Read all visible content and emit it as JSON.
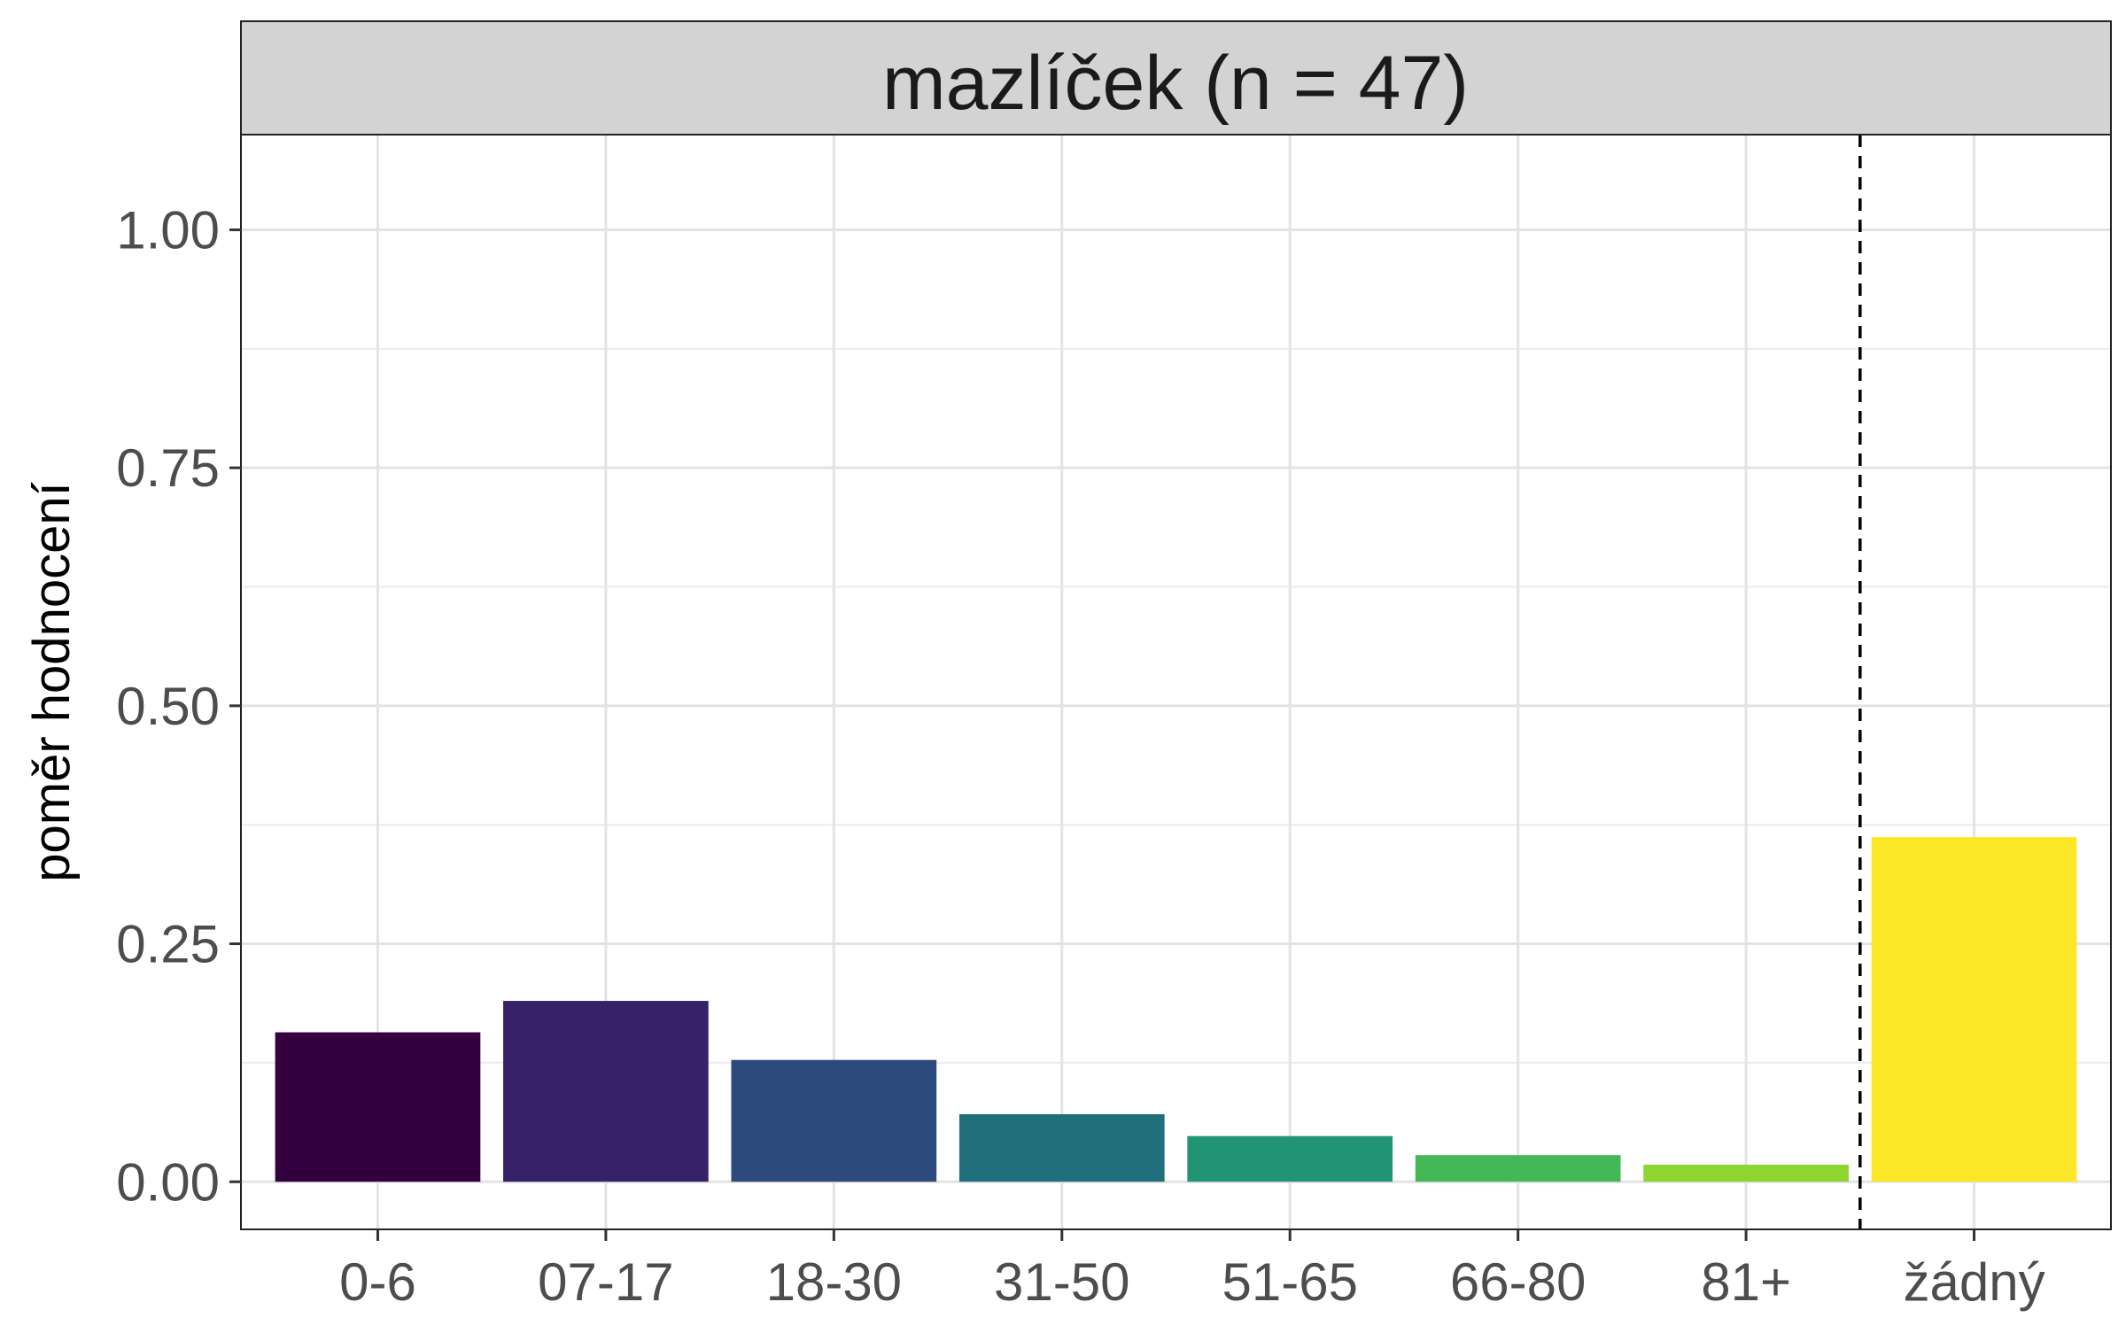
{
  "chart_data": {
    "type": "bar",
    "title": "mazlíček (n = 47)",
    "xlabel": "",
    "ylabel": "poměr hodnocení",
    "categories": [
      "0-6",
      "07-17",
      "18-30",
      "31-50",
      "51-65",
      "66-80",
      "81+",
      "žádný"
    ],
    "values": [
      0.157,
      0.19,
      0.128,
      0.071,
      0.048,
      0.028,
      0.018,
      0.362
    ],
    "colors": [
      "#35003e",
      "#37226a",
      "#2c4a7b",
      "#206f7d",
      "#219474",
      "#44b856",
      "#8fd52f",
      "#fde626"
    ],
    "ylim": [
      -0.05,
      1.1
    ],
    "yticks": [
      0,
      0.25,
      0.5,
      0.75,
      1
    ],
    "ytick_labels": [
      "0.00",
      "0.25",
      "0.50",
      "0.75",
      "1.00"
    ],
    "grid": true,
    "legend": "none",
    "vline_after_category": "81+",
    "vline_style": "dashed"
  }
}
